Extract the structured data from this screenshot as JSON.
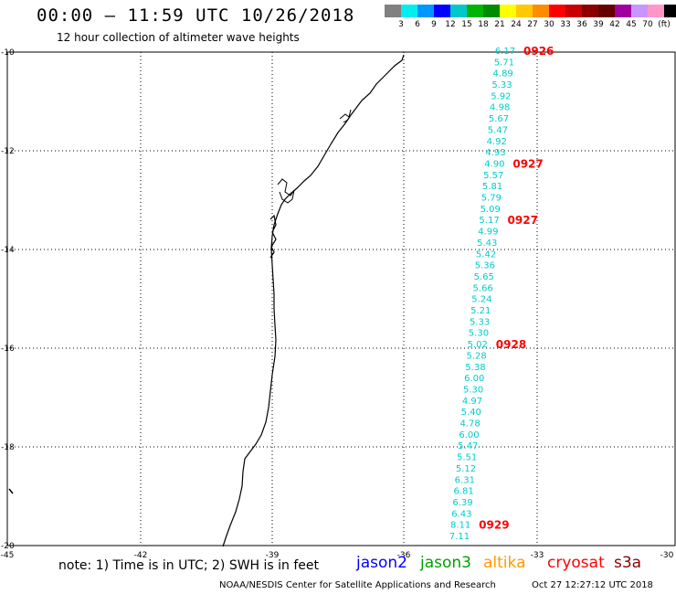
{
  "header": {
    "title": "00:00 – 11:59 UTC 10/26/2018",
    "subtitle": "12 hour collection of altimeter wave heights"
  },
  "scale": {
    "colors": [
      "#808080",
      "#00eeee",
      "#0096ff",
      "#0000ff",
      "#00c8c8",
      "#00b400",
      "#008c00",
      "#ffff00",
      "#ffc800",
      "#ff8c00",
      "#ff0000",
      "#c80000",
      "#8c0000",
      "#640000",
      "#a000a0",
      "#c896ff",
      "#ff96c8",
      "#000000"
    ],
    "labels": [
      "3",
      "6",
      "9",
      "12",
      "15",
      "18",
      "21",
      "24",
      "27",
      "30",
      "33",
      "36",
      "39",
      "42",
      "45",
      "70",
      "(ft)"
    ]
  },
  "map": {
    "lon_range": [
      -45,
      -30
    ],
    "lat_range": [
      -20,
      -10
    ],
    "y_ticks": [
      "-10",
      "-12",
      "-14",
      "-16",
      "-18",
      "-20"
    ],
    "x_ticks": [
      "-45",
      "-42",
      "-39",
      "-36",
      "-33",
      "-30"
    ],
    "grid": true,
    "grid_style": "dotted",
    "track_color": "#00cccc",
    "time_label_color": "#ff0000",
    "land_marker_label": "",
    "swh_labels": [
      "6.17",
      "5.71",
      "4.89",
      "5.33",
      "5.92",
      "4.98",
      "5.67",
      "5.47",
      "4.92",
      "4.93",
      "4.90",
      "5.57",
      "5.81",
      "5.79",
      "5.09",
      "5.17",
      "4.99",
      "5.43",
      "5.42",
      "5.36",
      "5.65",
      "5.66",
      "5.24",
      "5.21",
      "5.33",
      "5.30",
      "5.02",
      "5.28",
      "5.38",
      "6.00",
      "5.30",
      "4.97",
      "5.40",
      "4.78",
      "6.00",
      "5.47",
      "5.51",
      "5.12",
      "6.31",
      "6.81",
      "6.39",
      "6.43",
      "8.11",
      "7.11"
    ],
    "time_labels": [
      {
        "text": "0926",
        "index": 0
      },
      {
        "text": "0927",
        "index": 10
      },
      {
        "text": "0927",
        "index": 15
      },
      {
        "text": "0928",
        "index": 26
      },
      {
        "text": "0929",
        "index": 42
      }
    ]
  },
  "note": "note:  1) Time is in UTC;  2) SWH is in feet",
  "legend": [
    {
      "name": "jason2",
      "color": "#0000ff"
    },
    {
      "name": "jason3",
      "color": "#00a000"
    },
    {
      "name": "altika",
      "color": "#ff9900"
    },
    {
      "name": "cryosat",
      "color": "#ff0000"
    },
    {
      "name": "s3a",
      "color": "#8b0000"
    }
  ],
  "footer": {
    "credit": "NOAA/NESDIS Center for Satellite Applications and Research",
    "timestamp": "Oct 27 12:27:12 UTC 2018"
  }
}
